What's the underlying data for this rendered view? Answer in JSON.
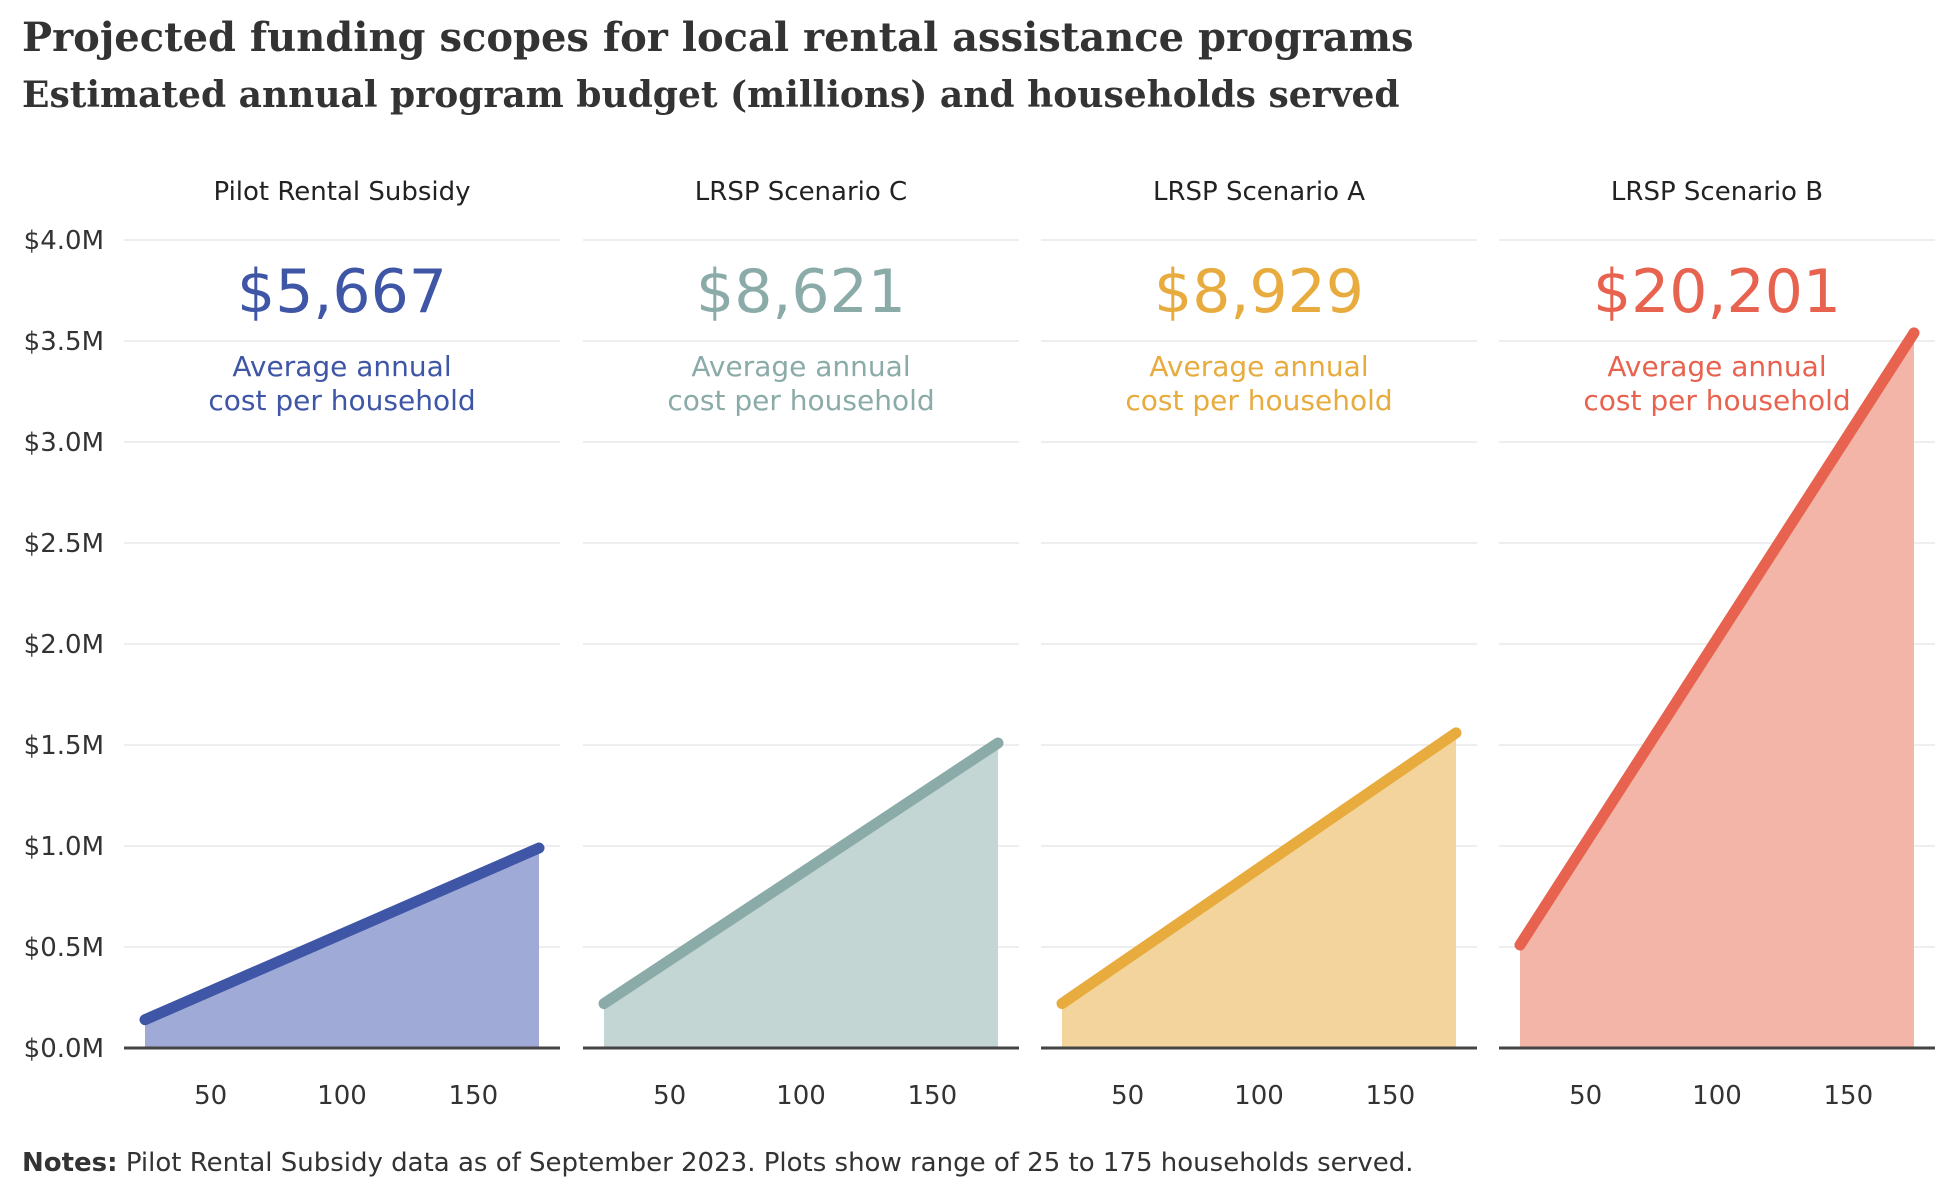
{
  "title": "Projected funding scopes for local rental assistance programs",
  "subtitle": "Estimated annual program budget (millions) and households served",
  "notes": {
    "label": "Notes:",
    "text": "Pilot Rental Subsidy data as of September 2023. Plots show range of 25 to 175 households served."
  },
  "chart_data": {
    "type": "area",
    "x_range": [
      25,
      175
    ],
    "x_ticks": [
      "50",
      "100",
      "150"
    ],
    "y_ticks": [
      "$0.0M",
      "$0.5M",
      "$1.0M",
      "$1.5M",
      "$2.0M",
      "$2.5M",
      "$3.0M",
      "$3.5M",
      "$4.0M"
    ],
    "ylim": [
      0,
      4.0
    ],
    "grid": true,
    "panels": [
      {
        "name": "Pilot Rental Subsidy",
        "stat_value": "$5,667",
        "stat_label_1": "Average annual",
        "stat_label_2": "cost per household",
        "color": "#3f56a6",
        "fill": "#a0aad6",
        "x": [
          25,
          175
        ],
        "y": [
          0.14,
          0.99
        ]
      },
      {
        "name": "LRSP Scenario C",
        "stat_value": "$8,621",
        "stat_label_1": "Average annual",
        "stat_label_2": "cost per household",
        "color": "#8aaba8",
        "fill": "#c4d6d4",
        "x": [
          25,
          175
        ],
        "y": [
          0.22,
          1.51
        ]
      },
      {
        "name": "LRSP Scenario A",
        "stat_value": "$8,929",
        "stat_label_1": "Average annual",
        "stat_label_2": "cost per household",
        "color": "#e8ab3e",
        "fill": "#f3d49c",
        "x": [
          25,
          175
        ],
        "y": [
          0.22,
          1.56
        ]
      },
      {
        "name": "LRSP Scenario B",
        "stat_value": "$20,201",
        "stat_label_1": "Average annual",
        "stat_label_2": "cost per household",
        "color": "#e8634f",
        "fill": "#f3b5a7",
        "x": [
          25,
          175
        ],
        "y": [
          0.51,
          3.54
        ]
      }
    ]
  }
}
